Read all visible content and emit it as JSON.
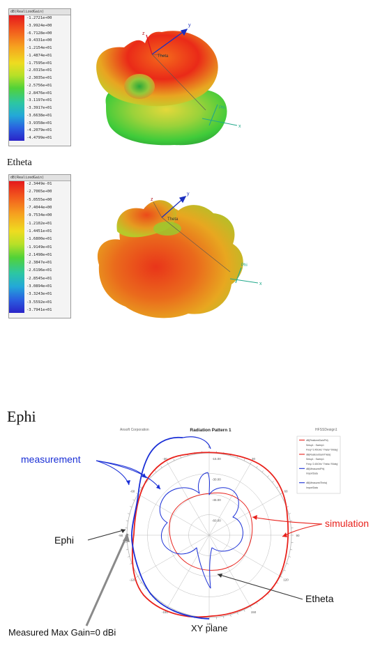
{
  "top_scale": {
    "title": "dB(RealizedGain)",
    "ticks": [
      "-1.2721e+00",
      "-3.9924e+00",
      "-6.7128e+00",
      "-9.4331e+00",
      "-1.2154e+01",
      "-1.4874e+01",
      "-1.7595e+01",
      "-2.0315e+01",
      "-2.3035e+01",
      "-2.5756e+01",
      "-2.8476e+01",
      "-3.1197e+01",
      "-3.3917e+01",
      "-3.6638e+01",
      "-3.9358e+01",
      "-4.2079e+01",
      "-4.4799e+01"
    ]
  },
  "top_axes": {
    "z": "z",
    "y": "y",
    "x": "x",
    "theta": "Theta",
    "phi": "Phi"
  },
  "etheta_label": "Etheta",
  "bottom_scale": {
    "title": "dB(RealizedGain)",
    "ticks": [
      "-2.3449e-01",
      "-2.7065e+00",
      "-5.0555e+00",
      "-7.4044e+00",
      "-9.7534e+00",
      "-1.2102e+01",
      "-1.4451e+01",
      "-1.6800e+01",
      "-1.9149e+01",
      "-2.1498e+01",
      "-2.3847e+01",
      "-2.6196e+01",
      "-2.8545e+01",
      "-3.0894e+01",
      "-3.3243e+01",
      "-3.5592e+01",
      "-3.7941e+01"
    ]
  },
  "bottom_axes": {
    "z": "z",
    "y": "y",
    "x": "x",
    "theta": "Theta",
    "phi": "Phi"
  },
  "ephi_label": "Ephi",
  "pattern": {
    "header_left": "Ansoft Corporation",
    "title": "Radiation Pattern 1",
    "header_right": "HFSSDesign1",
    "ring_labels": [
      "-15.00",
      "-30.00",
      "-45.00",
      "-60.00"
    ],
    "angle_labels": [
      "0",
      "30",
      "60",
      "90",
      "120",
      "150",
      "180",
      "-150",
      "-120",
      "-90",
      "-60",
      "-30"
    ],
    "legend": [
      "dB(RealizedGainPhi)",
      "Setup1 : Sweep1",
      "Freq='2.45GHz' Theta='90deg'",
      "dB(RealizedGainTheta)",
      "Setup1 : Sweep1",
      "Freq='2.45GHz' Theta='90deg'",
      "dB(MeasuredPhi)",
      "ImportData",
      "",
      "dB(MeasuredTheta)",
      "ImportData"
    ]
  },
  "annotations": {
    "measurement": "measurement",
    "simulation": "simulation",
    "ephi": "Ephi",
    "etheta": "Etheta",
    "max_gain": "Measured Max Gain=0 dBi",
    "plane": "XY plane"
  },
  "colors": {
    "measurement": "#1a2fd6",
    "simulation": "#e8211b",
    "grid": "#b9b9b9",
    "text": "#111111"
  }
}
